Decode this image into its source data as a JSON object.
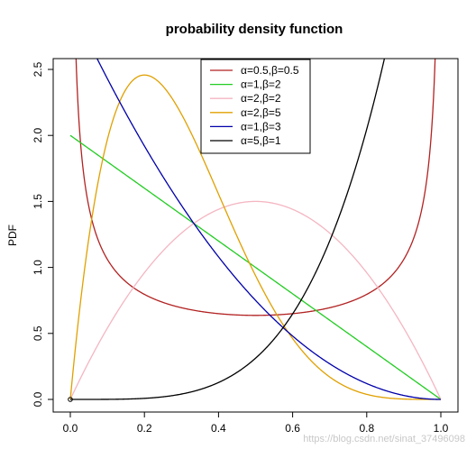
{
  "chart_data": {
    "type": "line",
    "title": "probability density function",
    "xlabel": "",
    "ylabel": "PDF",
    "xlim": [
      0,
      1
    ],
    "ylim": [
      0,
      2.5
    ],
    "x_ticks": [
      "0.0",
      "0.2",
      "0.4",
      "0.6",
      "0.8",
      "1.0"
    ],
    "y_ticks": [
      "0.0",
      "0.5",
      "1.0",
      "1.5",
      "2.0",
      "2.5"
    ],
    "grid": false,
    "legend_position": "top-center",
    "series": [
      {
        "name": "α=0.5,β=0.5",
        "alpha": 0.5,
        "beta": 0.5,
        "color": "#b22222"
      },
      {
        "name": "α=1,β=2",
        "alpha": 1,
        "beta": 2,
        "color": "#22cc22"
      },
      {
        "name": "α=2,β=2",
        "alpha": 2,
        "beta": 2,
        "color": "#f4b6c2"
      },
      {
        "name": "α=2,β=5",
        "alpha": 2,
        "beta": 5,
        "color": "#e0a000"
      },
      {
        "name": "α=1,β=3",
        "alpha": 1,
        "beta": 3,
        "color": "#0000aa"
      },
      {
        "name": "α=5,β=1",
        "alpha": 5,
        "beta": 1,
        "color": "#000000"
      }
    ],
    "start_point": {
      "x": 0,
      "y": 0
    },
    "watermark": "https://blog.csdn.net/sinat_37496098"
  }
}
